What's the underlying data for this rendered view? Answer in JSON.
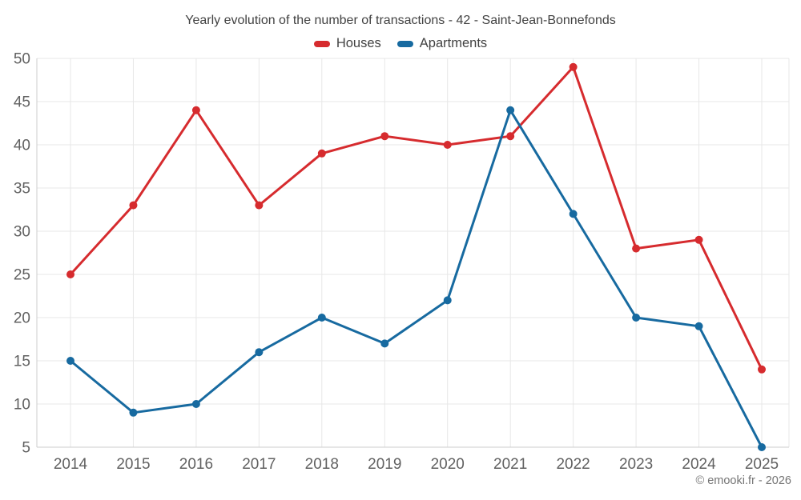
{
  "header": {
    "title": "Yearly evolution of the number of transactions - 42 - Saint-Jean-Bonnefonds"
  },
  "footer": {
    "credit": "© emooki.fr - 2026"
  },
  "colors": {
    "houses": "#d62b2e",
    "apartments": "#176aa0",
    "grid": "#e7e7e7",
    "axis": "#cccccc",
    "tick_label": "#616161",
    "title_text": "#424242",
    "footer_text": "#757575"
  },
  "chart_data": {
    "type": "line",
    "title": "Yearly evolution of the number of transactions - 42 - Saint-Jean-Bonnefonds",
    "xlabel": "",
    "ylabel": "",
    "categories": [
      "2014",
      "2015",
      "2016",
      "2017",
      "2018",
      "2019",
      "2020",
      "2021",
      "2022",
      "2023",
      "2024",
      "2025"
    ],
    "series": [
      {
        "name": "Houses",
        "color": "#d62b2e",
        "values": [
          25,
          33,
          44,
          33,
          39,
          41,
          40,
          41,
          49,
          28,
          29,
          14
        ]
      },
      {
        "name": "Apartments",
        "color": "#176aa0",
        "values": [
          15,
          9,
          10,
          16,
          20,
          17,
          22,
          44,
          32,
          20,
          19,
          5
        ]
      }
    ],
    "ylim": [
      5,
      50
    ],
    "ytick_step": 5,
    "grid": true,
    "legend_position": "top"
  }
}
